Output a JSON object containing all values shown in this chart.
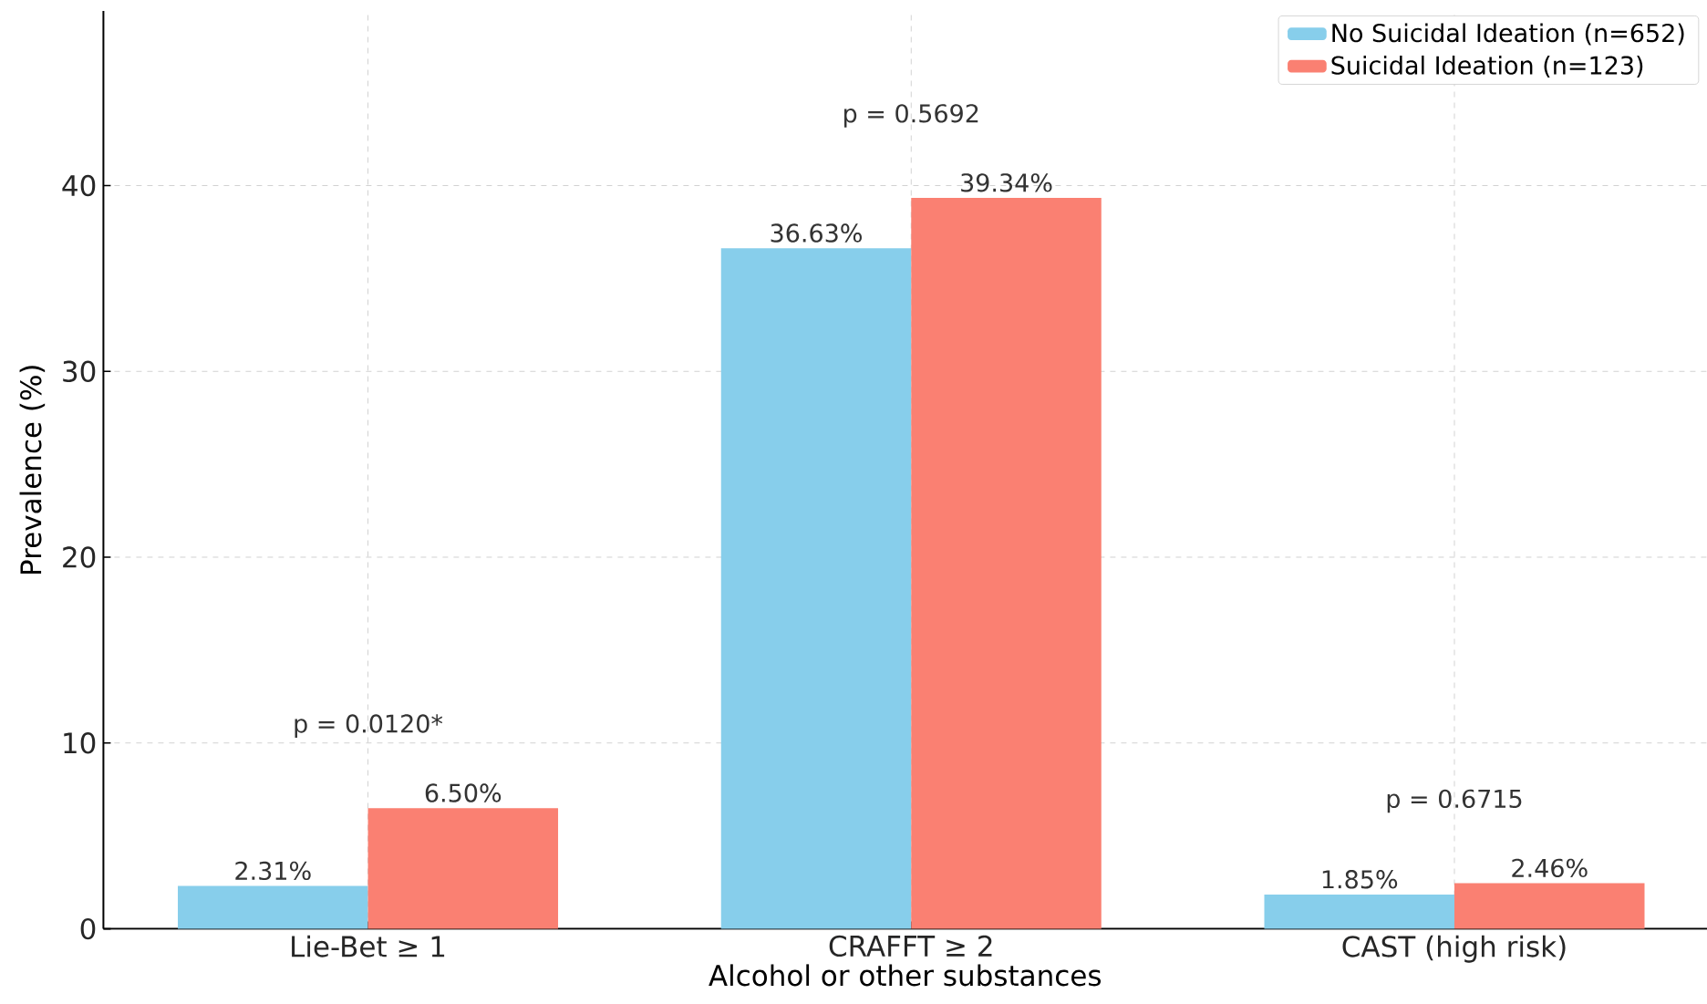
{
  "chart_data": {
    "type": "bar",
    "xlabel": "Alcohol or other substances",
    "ylabel": "Prevalence (%)",
    "categories": [
      "Lie-Bet ≥ 1",
      "CRAFFT ≥ 2",
      "CAST (high risk)"
    ],
    "series": [
      {
        "name": "No Suicidal Ideation (n=652)",
        "color": "#87ceeb",
        "values": [
          2.31,
          36.63,
          1.85
        ],
        "value_labels": [
          "2.31%",
          "36.63%",
          "1.85%"
        ]
      },
      {
        "name": "Suicidal Ideation (n=123)",
        "color": "#fa8072",
        "values": [
          6.5,
          39.34,
          2.46
        ],
        "value_labels": [
          "6.50%",
          "39.34%",
          "2.46%"
        ]
      }
    ],
    "annotations": [
      "p = 0.0120*",
      "p = 0.5692",
      "p = 0.6715"
    ],
    "ylim": [
      0,
      49.4
    ],
    "yticks": [
      0,
      10,
      20,
      30,
      40
    ],
    "grid": true,
    "legend": "top right"
  }
}
